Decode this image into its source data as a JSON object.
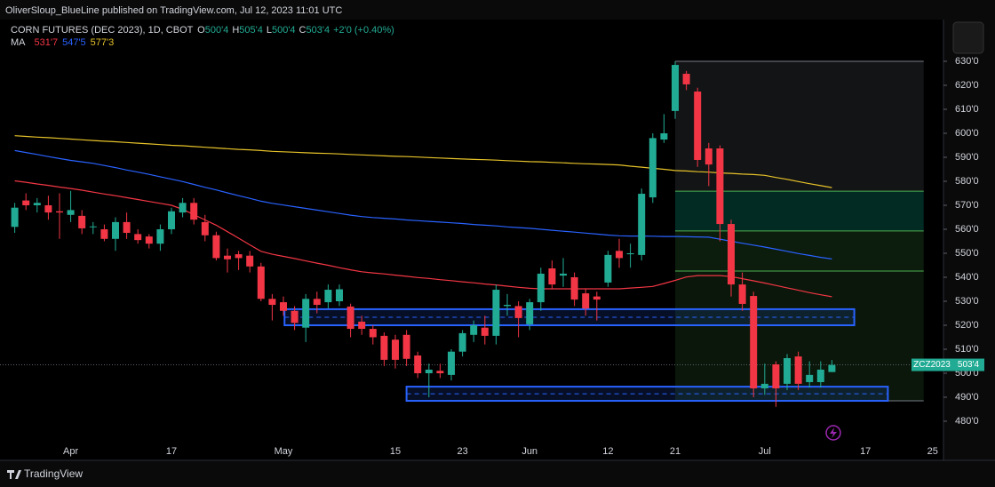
{
  "header": {
    "publisher": "OliverSloup_BlueLine published on TradingView.com, Jul 12, 2023 11:01 UTC"
  },
  "chart_data": {
    "type": "candlestick",
    "title": "CORN FUTURES (DEC 2023), 1D, CBOT",
    "ohlc_legend": [
      {
        "key": "O",
        "value": 500.5,
        "label": "500'4"
      },
      {
        "key": "H",
        "value": 505.5,
        "label": "505'4"
      },
      {
        "key": "L",
        "value": 500.5,
        "label": "500'4"
      },
      {
        "key": "C",
        "value": 503.5,
        "label": "503'4"
      }
    ],
    "change": "+2'0 (+0.40%)",
    "categories": [
      null,
      null,
      null,
      null,
      null,
      "Apr",
      null,
      null,
      null,
      null,
      null,
      null,
      null,
      null,
      "17",
      null,
      null,
      null,
      null,
      null,
      null,
      null,
      null,
      null,
      "May",
      null,
      null,
      null,
      null,
      null,
      null,
      null,
      null,
      null,
      "15",
      null,
      null,
      null,
      null,
      null,
      "23",
      null,
      null,
      null,
      null,
      null,
      "Jun",
      null,
      null,
      null,
      null,
      null,
      null,
      "12",
      null,
      null,
      null,
      null,
      null,
      "21",
      null,
      null,
      null,
      null,
      null,
      null,
      null,
      "Jul",
      null,
      null,
      null,
      null,
      null,
      null,
      null,
      null,
      "17",
      null,
      null,
      null,
      null,
      null,
      "25"
    ],
    "open": [
      561,
      572,
      570,
      570,
      567.5,
      566,
      565.6,
      561,
      560,
      556,
      563,
      558,
      557,
      554,
      560,
      567,
      571,
      563,
      557.5,
      549,
      549.6,
      549,
      544.5,
      531,
      529.6,
      526,
      519,
      531,
      529.6,
      530,
      527.8,
      521.5,
      518.5,
      515.6,
      514,
      516,
      507.4,
      500,
      501,
      499.3,
      509,
      516,
      519,
      515.6,
      528,
      528,
      520.4,
      529.6,
      543.7,
      540.7,
      540,
      533.3,
      532,
      537.8,
      551,
      549.6,
      549.3,
      573.3,
      597.4,
      609.3,
      624.8,
      617.4,
      593.7,
      593.7,
      562.2,
      537,
      532.2,
      493.7,
      503.7,
      495.6,
      507,
      496.3,
      496.3,
      500.5,
      null,
      null,
      null,
      null,
      null,
      null,
      null,
      null,
      null
    ],
    "high": [
      571,
      575,
      573,
      574,
      575,
      576,
      568,
      563,
      562,
      565,
      567,
      560,
      558,
      562,
      569,
      573,
      573,
      566,
      559,
      552,
      551,
      551,
      546,
      533,
      532,
      528,
      533,
      534,
      537,
      537,
      529,
      524,
      520,
      517,
      516,
      518,
      509,
      504,
      504,
      510,
      518,
      522,
      524,
      537,
      533,
      530,
      531,
      544,
      547,
      548,
      542,
      535,
      534,
      551,
      556,
      554,
      577,
      600,
      608,
      630,
      626,
      619,
      596,
      595,
      564,
      542,
      534,
      504,
      505,
      508,
      509,
      505,
      505,
      505.5,
      null,
      null,
      null,
      null,
      null,
      null,
      null,
      null,
      null
    ],
    "low": [
      558.5,
      568,
      567,
      564,
      556,
      563,
      558,
      558,
      555,
      551,
      556,
      554,
      552,
      551,
      558,
      565,
      562,
      555,
      547,
      542,
      543,
      542,
      530,
      522,
      524,
      518,
      513,
      525,
      527,
      528,
      515,
      516,
      512,
      503,
      502,
      503,
      498,
      490,
      498,
      497,
      507,
      513,
      512,
      512,
      524,
      515,
      518,
      526,
      535,
      536,
      528,
      524,
      522,
      536,
      544,
      544,
      547,
      571,
      596,
      606,
      618,
      586,
      578,
      555,
      532,
      526,
      490,
      491,
      486,
      493,
      493,
      494,
      494,
      500.5,
      null,
      null,
      null,
      null,
      null,
      null,
      null,
      null,
      null
    ],
    "close": [
      569,
      570,
      571,
      567,
      567,
      568,
      560.4,
      561.2,
      556,
      563,
      558.5,
      555.5,
      554,
      560,
      567.5,
      571,
      564,
      557.5,
      548,
      547.5,
      548,
      544.5,
      531,
      528.5,
      526,
      521,
      531,
      528.5,
      534.8,
      535,
      518.5,
      518.5,
      515,
      505.6,
      505.6,
      506,
      500,
      501.5,
      500,
      509,
      516.7,
      520,
      515.6,
      534.8,
      528.5,
      523,
      529.6,
      541.5,
      537,
      541.5,
      530.7,
      527,
      530.7,
      549.3,
      548,
      550,
      574.8,
      598,
      600,
      628.5,
      620.4,
      588.9,
      587,
      562.2,
      537,
      528.9,
      493.7,
      495.6,
      493.7,
      506.3,
      495.6,
      499.3,
      501.5,
      503.5,
      null,
      null,
      null,
      null,
      null,
      null,
      null,
      null,
      null
    ],
    "up_color": "#22ab94",
    "down_color": "#f23645",
    "ylim": [
      463.7,
      647.41
    ],
    "yticks": [
      {
        "value": 480,
        "label": "480'0"
      },
      {
        "value": 490,
        "label": "490'0"
      },
      {
        "value": 500,
        "label": "500'0"
      },
      {
        "value": 510,
        "label": "510'0"
      },
      {
        "value": 520,
        "label": "520'0"
      },
      {
        "value": 530,
        "label": "530'0"
      },
      {
        "value": 540,
        "label": "540'0"
      },
      {
        "value": 550,
        "label": "550'0"
      },
      {
        "value": 560,
        "label": "560'0"
      },
      {
        "value": 570,
        "label": "570'0"
      },
      {
        "value": 580,
        "label": "580'0"
      },
      {
        "value": 590,
        "label": "590'0"
      },
      {
        "value": 600,
        "label": "600'0"
      },
      {
        "value": 610,
        "label": "610'0"
      },
      {
        "value": 620,
        "label": "620'0"
      },
      {
        "value": 630,
        "label": "630'0"
      }
    ],
    "ma": {
      "name": "MA",
      "series": [
        {
          "color": "#f23645",
          "legend_label": "531'7",
          "values": [
            580.2,
            579.6,
            578.9,
            578.3,
            577.6,
            577.0,
            576.3,
            575.5,
            574.7,
            574.0,
            573.2,
            572.4,
            571.6,
            570.8,
            570.0,
            568.3,
            566.1,
            563.9,
            561.7,
            559.0,
            556.3,
            553.5,
            550.8,
            549.6,
            548.7,
            547.8,
            546.8,
            545.9,
            545.0,
            544.0,
            543.1,
            542.3,
            541.8,
            541.4,
            540.9,
            540.4,
            539.9,
            539.5,
            539.0,
            538.6,
            538.1,
            537.7,
            537.2,
            536.8,
            536.3,
            535.8,
            535.4,
            535.2,
            535.2,
            535.2,
            535.2,
            535.2,
            535.2,
            535.2,
            535.2,
            535.5,
            535.8,
            536.2,
            537.4,
            538.7,
            540.1,
            540.7,
            540.7,
            540.7,
            540.3,
            539.4,
            538.5,
            537.6,
            536.6,
            535.6,
            534.6,
            533.6,
            532.7,
            531.875,
            null,
            null,
            null,
            null,
            null,
            null,
            null,
            null,
            null
          ]
        },
        {
          "color": "#2962ff",
          "legend_label": "547'5",
          "values": [
            592.8,
            592.0,
            591.2,
            590.3,
            589.5,
            588.7,
            588.1,
            587.5,
            586.6,
            585.7,
            584.7,
            583.8,
            582.9,
            581.9,
            580.9,
            579.9,
            578.7,
            577.5,
            576.4,
            575.2,
            574.0,
            572.9,
            571.7,
            570.8,
            570.1,
            569.4,
            568.7,
            568.0,
            567.3,
            566.6,
            565.9,
            565.3,
            564.9,
            564.6,
            564.3,
            563.9,
            563.6,
            563.3,
            563.0,
            562.7,
            562.4,
            562.0,
            561.7,
            561.4,
            561.0,
            560.7,
            560.4,
            560.0,
            559.6,
            559.2,
            558.8,
            558.4,
            558.0,
            557.6,
            557.3,
            557.2,
            557.2,
            557.1,
            557.0,
            557.0,
            556.9,
            556.8,
            556.7,
            555.9,
            555.0,
            554.2,
            553.4,
            552.6,
            551.7,
            550.8,
            549.9,
            549.1,
            548.3,
            547.625,
            null,
            null,
            null,
            null,
            null,
            null,
            null,
            null,
            null
          ]
        },
        {
          "color": "#e6c229",
          "legend_label": "577'3",
          "values": [
            599.0,
            598.7,
            598.4,
            598.2,
            597.9,
            597.6,
            597.3,
            597.0,
            596.7,
            596.5,
            596.2,
            595.9,
            595.6,
            595.3,
            595.0,
            594.8,
            594.5,
            594.2,
            593.9,
            593.6,
            593.3,
            593.1,
            592.8,
            592.5,
            592.3,
            592.1,
            591.9,
            591.7,
            591.6,
            591.4,
            591.2,
            591.0,
            590.8,
            590.6,
            590.4,
            590.3,
            590.1,
            589.9,
            589.7,
            589.5,
            589.3,
            589.1,
            589.0,
            588.8,
            588.6,
            588.4,
            588.2,
            588.1,
            587.9,
            587.7,
            587.5,
            587.3,
            587.2,
            587.0,
            586.8,
            586.3,
            585.9,
            585.4,
            585.0,
            584.5,
            584.3,
            584.0,
            583.8,
            583.5,
            583.3,
            583.0,
            582.8,
            582.5,
            581.6,
            580.8,
            579.9,
            579.0,
            578.2,
            577.375,
            null,
            null,
            null,
            null,
            null,
            null,
            null,
            null,
            null
          ]
        }
      ]
    },
    "last_price": {
      "symbol": "ZCZ2023",
      "value": 503.5,
      "label": "503'4",
      "color": "#22ab94"
    },
    "zones": [
      {
        "top": 526.7,
        "bottom": 520,
        "start": 24.1,
        "end": 75,
        "color": "#2962ff"
      },
      {
        "top": 494.4,
        "bottom": 488.5,
        "start": 35,
        "end": 78,
        "color": "#2962ff"
      }
    ],
    "position": {
      "start": 59,
      "end": 81.2,
      "levels": [
        630,
        575.9,
        559.3,
        542.6,
        488.5
      ],
      "band_colors": [
        "rgba(120,123,134,0.16)",
        "rgba(8,153,129,0.28)",
        "rgba(76,175,80,0.16)",
        "rgba(76,175,80,0.13)"
      ],
      "level_colors": [
        "#787b86",
        "#4caf50",
        "#4caf50",
        "#4caf50",
        "#787b86"
      ]
    }
  },
  "footer": {
    "brand": "TradingView"
  }
}
